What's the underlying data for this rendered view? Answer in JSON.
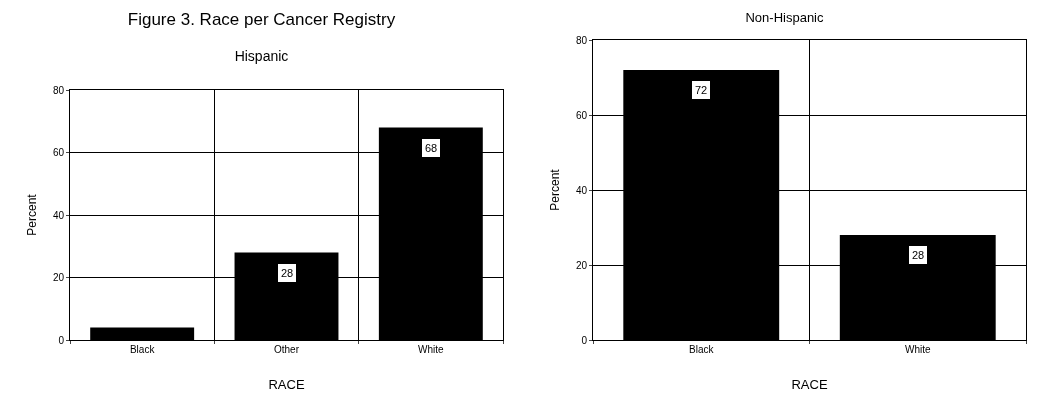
{
  "chart_data": [
    {
      "type": "bar",
      "title": "Figure 3. Race per Cancer Registry",
      "subtitle": "Hispanic",
      "xlabel": "RACE",
      "ylabel": "Percent",
      "categories": [
        "Black",
        "Other",
        "White"
      ],
      "values": [
        4,
        28,
        68
      ],
      "value_labels": [
        null,
        "28",
        "68"
      ],
      "color": "#000000",
      "ylim": [
        0,
        80
      ],
      "yticks": [
        0,
        20,
        40,
        60,
        80
      ],
      "grid": true,
      "legend": false
    },
    {
      "type": "bar",
      "title": "Non-Hispanic",
      "xlabel": "RACE",
      "ylabel": "Percent",
      "categories": [
        "Black",
        "White"
      ],
      "values": [
        72,
        28
      ],
      "value_labels": [
        "72",
        "28"
      ],
      "color": "#000000",
      "ylim": [
        0,
        80
      ],
      "yticks": [
        0,
        20,
        40,
        60,
        80
      ],
      "grid": true,
      "legend": false
    }
  ]
}
